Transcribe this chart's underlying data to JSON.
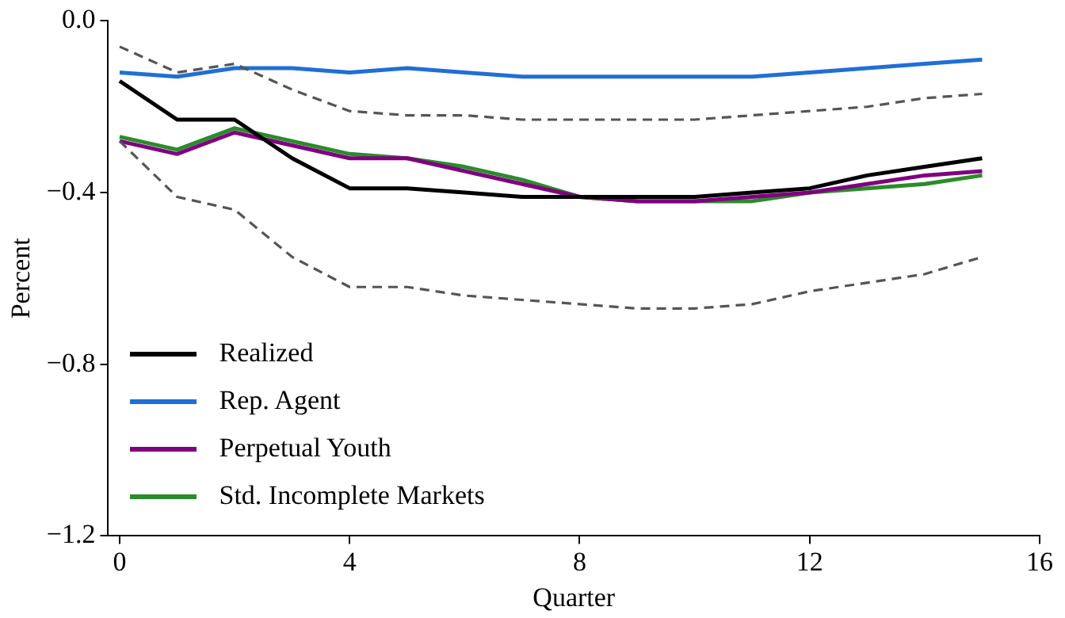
{
  "chart_data": {
    "type": "line",
    "xlabel": "Quarter",
    "ylabel": "Percent",
    "x": [
      0,
      1,
      2,
      3,
      4,
      5,
      6,
      7,
      8,
      9,
      10,
      11,
      12,
      13,
      14,
      15
    ],
    "xlim": [
      -0.2,
      16
    ],
    "xticks": [
      0,
      4,
      8,
      12,
      16
    ],
    "ylim": [
      -1.2,
      0
    ],
    "yticks": [
      {
        "value": 0,
        "label": "0.0"
      },
      {
        "value": -0.4,
        "label": "−0.4"
      },
      {
        "value": -0.8,
        "label": "−0.8"
      },
      {
        "value": -1.2,
        "label": "−1.2"
      }
    ],
    "grid": false,
    "legend": "bottom left",
    "marker": "none",
    "series": [
      {
        "color": "#555555",
        "line_style": "dashed",
        "values": [
          -0.06,
          -0.12,
          -0.1,
          -0.16,
          -0.21,
          -0.22,
          -0.22,
          -0.23,
          -0.23,
          -0.23,
          -0.23,
          -0.22,
          -0.21,
          -0.2,
          -0.18,
          -0.17
        ]
      },
      {
        "color": "#555555",
        "line_style": "dashed",
        "values": [
          -0.28,
          -0.41,
          -0.44,
          -0.55,
          -0.62,
          -0.62,
          -0.64,
          -0.65,
          -0.66,
          -0.67,
          -0.67,
          -0.66,
          -0.63,
          -0.61,
          -0.59,
          -0.55
        ]
      },
      {
        "name": "Realized",
        "color": "#000000",
        "line_style": "solid",
        "values": [
          -0.14,
          -0.23,
          -0.23,
          -0.32,
          -0.39,
          -0.39,
          -0.4,
          -0.41,
          -0.41,
          -0.41,
          -0.41,
          -0.4,
          -0.39,
          -0.36,
          -0.34,
          -0.32
        ]
      },
      {
        "name": "Rep. Agent",
        "color": "#1f6fd6",
        "line_style": "solid",
        "values": [
          -0.12,
          -0.13,
          -0.11,
          -0.11,
          -0.12,
          -0.11,
          -0.12,
          -0.13,
          -0.13,
          -0.13,
          -0.13,
          -0.13,
          -0.12,
          -0.11,
          -0.1,
          -0.09
        ]
      },
      {
        "name": "Perpetual Youth",
        "color": "#800080",
        "line_style": "solid",
        "values": [
          -0.28,
          -0.31,
          -0.26,
          -0.29,
          -0.32,
          -0.32,
          -0.35,
          -0.38,
          -0.41,
          -0.42,
          -0.42,
          -0.41,
          -0.4,
          -0.38,
          -0.36,
          -0.35
        ]
      },
      {
        "name": "Std. Incomplete Markets",
        "color": "#2a8c2a",
        "line_style": "solid",
        "values": [
          -0.27,
          -0.3,
          -0.25,
          -0.28,
          -0.31,
          -0.32,
          -0.34,
          -0.37,
          -0.41,
          -0.42,
          -0.42,
          -0.42,
          -0.4,
          -0.39,
          -0.38,
          -0.36
        ]
      }
    ]
  }
}
